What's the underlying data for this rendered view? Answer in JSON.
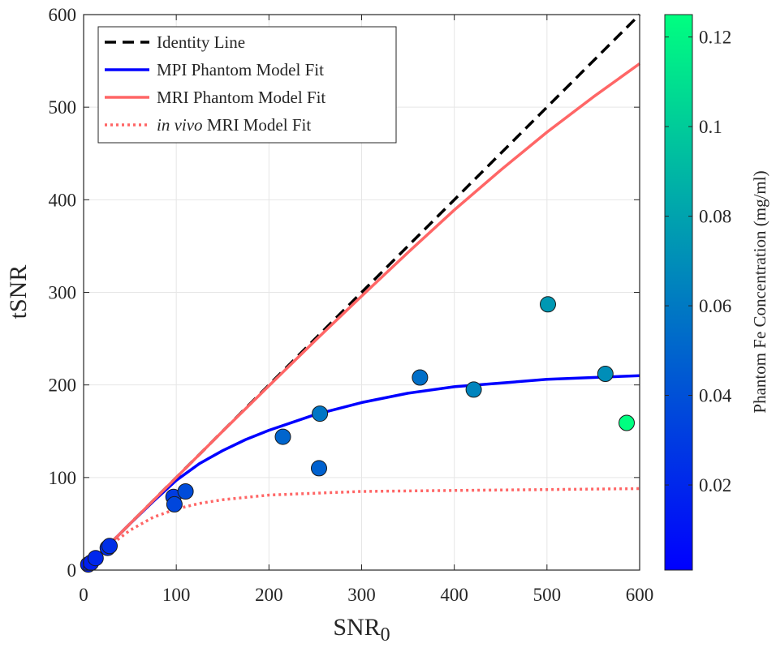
{
  "chart_data": {
    "type": "scatter",
    "xlabel": "SNR",
    "xlabel_subscript": "0",
    "ylabel": "tSNR",
    "xlim": [
      0,
      600
    ],
    "ylim": [
      0,
      600
    ],
    "x_ticks": [
      0,
      100,
      200,
      300,
      400,
      500,
      600
    ],
    "y_ticks": [
      0,
      100,
      200,
      300,
      400,
      500,
      600
    ],
    "grid": true,
    "legend_position": "top-left",
    "legend": [
      {
        "key": "identity",
        "prefix": "",
        "label": "Identity Line",
        "color": "#000000",
        "dash": "dashed"
      },
      {
        "key": "mpi",
        "prefix": "",
        "label": "MPI Phantom Model Fit",
        "color": "#0000ff",
        "dash": "solid"
      },
      {
        "key": "mri",
        "prefix": "",
        "label": "MRI Phantom Model Fit",
        "color": "#ff6666",
        "dash": "solid"
      },
      {
        "key": "invivo",
        "prefix": "in vivo",
        "label": " MRI Model Fit",
        "color": "#ff6666",
        "dash": "dotted"
      }
    ],
    "series": [
      {
        "key": "identity",
        "name": "Identity Line",
        "x": [
          0,
          600
        ],
        "y": [
          0,
          600
        ]
      },
      {
        "key": "mri",
        "name": "MRI Phantom Model Fit",
        "x": [
          0,
          50,
          100,
          150,
          200,
          250,
          300,
          350,
          400,
          450,
          500,
          550,
          600
        ],
        "y": [
          0,
          50,
          100,
          150,
          199,
          248,
          296,
          343,
          389,
          432,
          473,
          511,
          547
        ]
      },
      {
        "key": "mpi",
        "name": "MPI Phantom Model Fit",
        "x": [
          0,
          25,
          50,
          75,
          100,
          125,
          150,
          175,
          200,
          250,
          300,
          350,
          400,
          450,
          500,
          550,
          600
        ],
        "y": [
          0,
          25,
          50,
          74,
          97,
          115,
          129,
          141,
          151,
          168,
          181,
          191,
          198,
          202,
          206,
          208,
          210
        ]
      },
      {
        "key": "invivo",
        "name": "in vivo MRI Model Fit",
        "x": [
          0,
          25,
          50,
          75,
          100,
          125,
          150,
          200,
          250,
          300,
          400,
          500,
          600
        ],
        "y": [
          0,
          24,
          43,
          57,
          66,
          72,
          76,
          81,
          83,
          85,
          86,
          87,
          88
        ]
      }
    ],
    "points": [
      {
        "x": 5,
        "y": 6,
        "c": 0.015
      },
      {
        "x": 8,
        "y": 8,
        "c": 0.016
      },
      {
        "x": 13,
        "y": 13,
        "c": 0.02
      },
      {
        "x": 26,
        "y": 24,
        "c": 0.022
      },
      {
        "x": 28,
        "y": 26,
        "c": 0.024
      },
      {
        "x": 97,
        "y": 79,
        "c": 0.03
      },
      {
        "x": 98,
        "y": 71,
        "c": 0.035
      },
      {
        "x": 110,
        "y": 85,
        "c": 0.038
      },
      {
        "x": 215,
        "y": 144,
        "c": 0.05
      },
      {
        "x": 254,
        "y": 110,
        "c": 0.048
      },
      {
        "x": 255,
        "y": 169,
        "c": 0.058
      },
      {
        "x": 363,
        "y": 208,
        "c": 0.055
      },
      {
        "x": 421,
        "y": 195,
        "c": 0.065
      },
      {
        "x": 501,
        "y": 287,
        "c": 0.075
      },
      {
        "x": 563,
        "y": 212,
        "c": 0.07
      },
      {
        "x": 586,
        "y": 159,
        "c": 0.125
      }
    ],
    "colorbar": {
      "label": "Phantom Fe Concentration (mg/ml)",
      "range": [
        0.001,
        0.125
      ],
      "ticks": [
        0.02,
        0.04,
        0.06,
        0.08,
        0.1,
        0.12
      ],
      "tick_labels": [
        "0.02",
        "0.04",
        "0.06",
        "0.08",
        "0.1",
        "0.12"
      ],
      "color_low": "#0000ff",
      "color_high": "#00ff80"
    }
  }
}
